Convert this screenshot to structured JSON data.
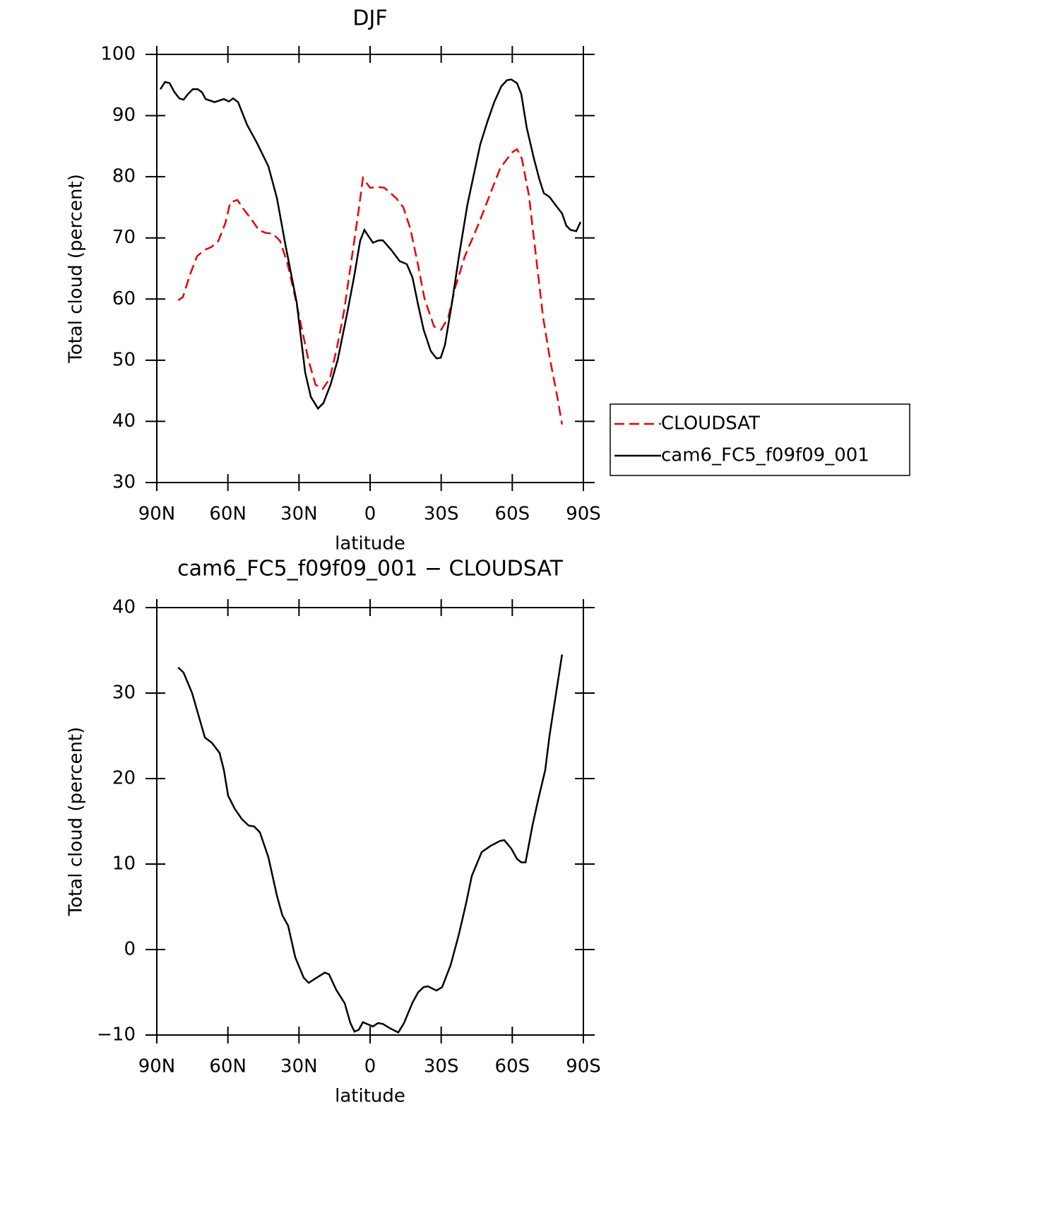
{
  "chart_data": [
    {
      "type": "line",
      "title": "DJF",
      "xlabel": "latitude",
      "ylabel": "Total cloud (percent)",
      "x": [
        88.5,
        86.5,
        84.6,
        82.5,
        80.5,
        78.7,
        76.9,
        74.8,
        72.7,
        70.9,
        69.4,
        65.6,
        61.7,
        59.6,
        57.8,
        55.7,
        51.9,
        47.7,
        42.9,
        39.3,
        35.8,
        31,
        27.4,
        25,
        22,
        19.7,
        16.7,
        13.7,
        9.5,
        6.6,
        4.2,
        2.4,
        -1.2,
        -3.6,
        -5.4,
        -9,
        -12.5,
        -15.5,
        -17.9,
        -20.3,
        -22.6,
        -25.6,
        -28,
        -29.8,
        -31.6,
        -34.6,
        -37.5,
        -41.1,
        -46.5,
        -49.5,
        -52.4,
        -55.4,
        -57.8,
        -59.6,
        -62,
        -63.8,
        -66.1,
        -69.1,
        -71.5,
        -73.3,
        -75.7,
        -78,
        -81,
        -82.8,
        -84.6,
        -87,
        -88.8
      ],
      "series": [
        {
          "name": "CLOUDSAT",
          "color": "#e8000b",
          "line_style": "dashed",
          "x": [
            81,
            79,
            76,
            73,
            70,
            67,
            64,
            61,
            59,
            56,
            53,
            50,
            47,
            44,
            41,
            38,
            35,
            32,
            29,
            26,
            23,
            20,
            17,
            14,
            11,
            8,
            5,
            3,
            0,
            -4,
            -6,
            -11,
            -14,
            -17,
            -20,
            -23,
            -27,
            -30,
            -33,
            -36,
            -40,
            -46,
            -51,
            -55,
            -60,
            -62,
            -64,
            -67,
            -70,
            -73,
            -76,
            -79,
            -81
          ],
          "values": [
            59.8,
            60.3,
            64,
            67,
            68,
            68.5,
            69.5,
            72.5,
            75.8,
            76.2,
            74.5,
            73,
            71.3,
            70.8,
            70.7,
            69.5,
            66,
            61,
            55.5,
            50,
            46,
            45.3,
            47,
            52,
            58,
            66,
            74,
            79.8,
            78.2,
            78.3,
            78.2,
            76.5,
            75,
            71.5,
            66,
            60,
            55.5,
            55,
            57,
            62,
            67,
            72.5,
            77.5,
            81.5,
            84,
            84.5,
            83,
            77,
            67,
            57,
            50,
            44,
            39.5
          ]
        },
        {
          "name": "cam6_FC5_f09f09_001",
          "color": "#000000",
          "line_style": "solid",
          "values": [
            94.3,
            95.5,
            95.3,
            93.8,
            92.8,
            92.6,
            93.5,
            94.3,
            94.3,
            93.8,
            92.7,
            92.2,
            92.7,
            92.3,
            92.8,
            92.2,
            88.5,
            85.5,
            81.7,
            76.5,
            69,
            59.5,
            48,
            44,
            42.1,
            43,
            46,
            50,
            58,
            64,
            69.5,
            71.3,
            69.2,
            69.6,
            69.6,
            68,
            66.2,
            65.7,
            63.5,
            59,
            55,
            51.5,
            50.3,
            50.4,
            52.5,
            59.5,
            67,
            75.5,
            85.3,
            89,
            92.2,
            94.8,
            95.8,
            95.9,
            95.3,
            93.5,
            88,
            83,
            79.5,
            77.3,
            76.7,
            75.5,
            74,
            72,
            71.3,
            71.1,
            72.6
          ]
        }
      ],
      "xlim": [
        90,
        -90
      ],
      "xticks": [
        {
          "value": 90,
          "label": "90N"
        },
        {
          "value": 60,
          "label": "60N"
        },
        {
          "value": 30,
          "label": "30N"
        },
        0,
        {
          "value": -30,
          "label": "30S"
        },
        {
          "value": -60,
          "label": "60S"
        },
        {
          "value": -90,
          "label": "90S"
        }
      ],
      "ylim": [
        30,
        100
      ],
      "yticks": [
        30,
        40,
        50,
        60,
        70,
        80,
        90,
        100
      ],
      "legend": "outside-right"
    },
    {
      "type": "line",
      "title": "cam6_FC5_f09f09_001 − CLOUDSAT",
      "xlabel": "latitude",
      "ylabel": "Total cloud (percent)",
      "x": [
        81,
        78.7,
        75.1,
        69.7,
        66.8,
        63.5,
        61.7,
        59.9,
        57.2,
        54.2,
        51.3,
        48.9,
        46.5,
        42.9,
        39.3,
        37,
        34.6,
        31.6,
        28,
        25.9,
        22,
        19.1,
        17.3,
        14.3,
        10.7,
        8.3,
        6.6,
        4.8,
        3,
        -1.2,
        -3.3,
        -5.4,
        -8.3,
        -11.9,
        -14.3,
        -17.9,
        -20.3,
        -22.6,
        -24.4,
        -28,
        -30.4,
        -34,
        -37.5,
        -40.5,
        -42.9,
        -47.1,
        -50.7,
        -54.8,
        -56.6,
        -59.6,
        -62,
        -63.8,
        -65.6,
        -68.5,
        -70.9,
        -73.9,
        -75.7,
        -81
      ],
      "series": [
        {
          "color": "#000000",
          "line_style": "solid",
          "values": [
            33,
            32.4,
            30,
            24.8,
            24.2,
            23,
            21,
            18,
            16.5,
            15.3,
            14.5,
            14.4,
            13.7,
            10.8,
            6.3,
            4,
            2.8,
            -0.9,
            -3.3,
            -3.9,
            -3.2,
            -2.7,
            -2.9,
            -4.7,
            -6.3,
            -8.6,
            -9.6,
            -9.4,
            -8.5,
            -9,
            -8.6,
            -8.7,
            -9.2,
            -9.7,
            -8.6,
            -6.2,
            -5,
            -4.4,
            -4.3,
            -4.8,
            -4.4,
            -1.8,
            1.8,
            5.4,
            8.6,
            11.4,
            12.1,
            12.7,
            12.8,
            11.8,
            10.6,
            10.2,
            10.2,
            14.5,
            17.5,
            21,
            25,
            34.5
          ]
        }
      ],
      "xlim": [
        90,
        -90
      ],
      "xticks": [
        {
          "value": 90,
          "label": "90N"
        },
        {
          "value": 60,
          "label": "60N"
        },
        {
          "value": 30,
          "label": "30N"
        },
        0,
        {
          "value": -30,
          "label": "30S"
        },
        {
          "value": -60,
          "label": "60S"
        },
        {
          "value": -90,
          "label": "90S"
        }
      ],
      "ylim": [
        -10,
        40
      ],
      "yticks": [
        {
          "value": -10,
          "label": "−10"
        },
        0,
        10,
        20,
        30,
        40
      ]
    }
  ]
}
